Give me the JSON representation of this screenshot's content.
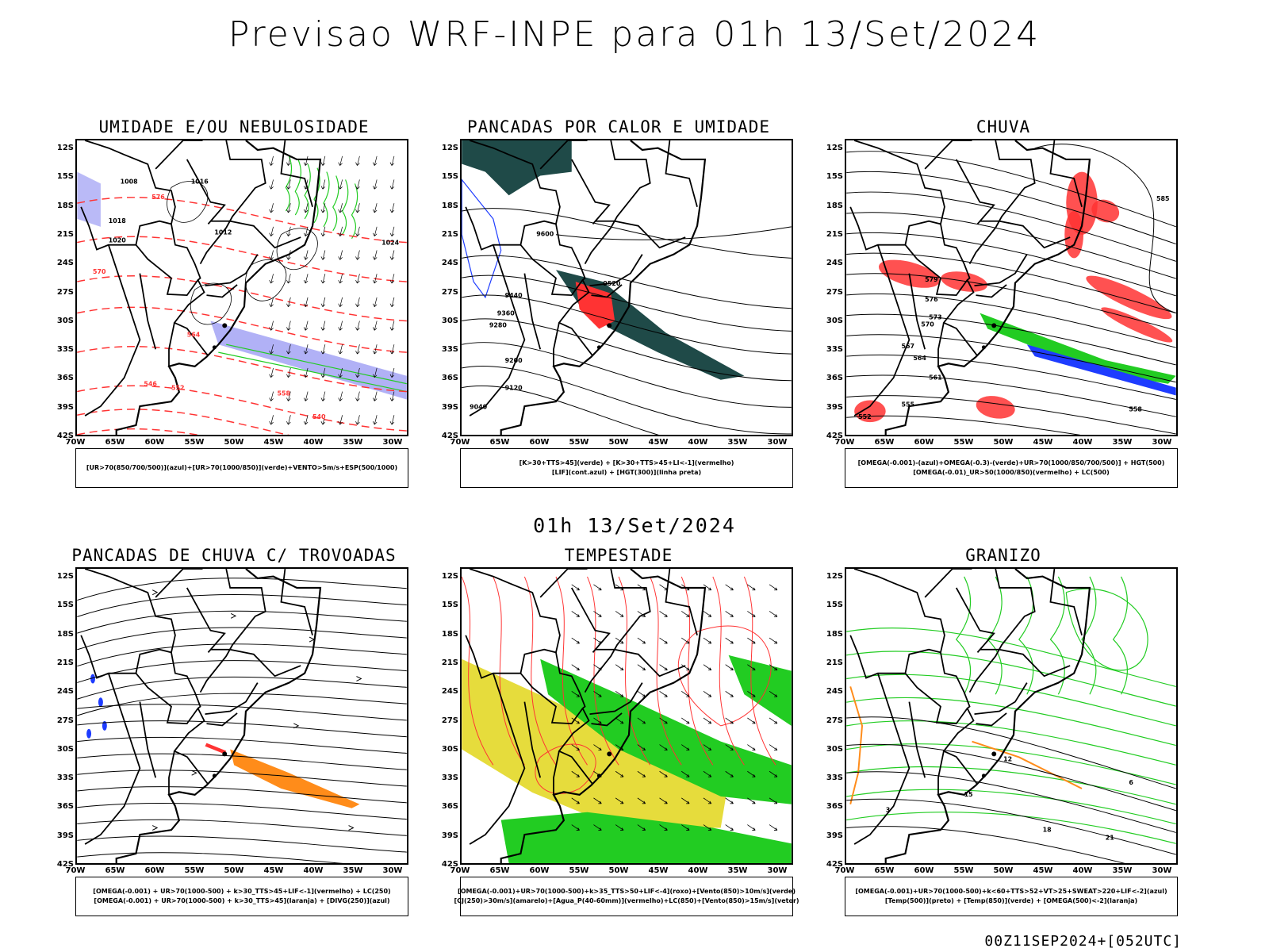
{
  "title": "Previsao WRF-INPE  para 01h 13/Set/2024",
  "subtitle": "01h 13/Set/2024",
  "footer": "00Z11SEP2024+[052UTC]",
  "lat_labels": [
    "12S",
    "15S",
    "18S",
    "21S",
    "24S",
    "27S",
    "30S",
    "33S",
    "36S",
    "39S",
    "42S"
  ],
  "lon_labels": [
    "70W",
    "65W",
    "60W",
    "55W",
    "50W",
    "45W",
    "40W",
    "35W",
    "30W"
  ],
  "panels": [
    {
      "title": "UMIDADE E/OU NEBULOSIDADE",
      "legend": [
        "[UR>70(850/700/500)](azul)+[UR>70(1000/850)](verde)+VENTO>5m/s+ESP(500/1000)"
      ],
      "contour_labels": [
        "1016",
        "1012",
        "1008",
        "1020",
        "1024",
        "1018",
        "576",
        "570",
        "564",
        "558",
        "552",
        "546",
        "540"
      ]
    },
    {
      "title": "PANCADAS POR CALOR E UMIDADE",
      "legend": [
        "[K>30+TTS>45](verde) + [K>30+TTS>45+LI<-1](vermelho)",
        "[LIF](cont.azul) + [HGT(300)](linha preta)"
      ],
      "contour_labels": [
        "9600",
        "9520",
        "9440",
        "9360",
        "9280",
        "9200",
        "9120",
        "9040"
      ]
    },
    {
      "title": "CHUVA",
      "legend": [
        "[OMEGA(-0.001)-(azul)+OMEGA(-0.3)-(verde)+UR>70(1000/850/700/500)] + HGT(500)",
        "[OMEGA(-0.01)_UR>50(1000/850)(vermelho) + LC(500)"
      ],
      "contour_labels": [
        "585",
        "579",
        "576",
        "573",
        "570",
        "567",
        "564",
        "561",
        "558",
        "555",
        "552"
      ]
    },
    {
      "title": "PANCADAS DE CHUVA C/ TROVOADAS",
      "legend": [
        "[OMEGA(-0.001) + UR>70(1000-500) + k>30_TTS>45+LIF<-1](vermelho) + LC(250)",
        "[OMEGA(-0.001) + UR>70(1000-500) + k>30_TTS>45](laranja) + [DIVG(250)](azul)"
      ],
      "contour_labels": []
    },
    {
      "title": "TEMPESTADE",
      "legend": [
        "[OMEGA(-0.001)+UR>70(1000-500)+k>35_TTS>50+LIF<-4](roxo)+[Vento(850)>10m/s](verde)",
        "[CJ(250)>30m/s](amarelo)+[Agua_P(40-60mm)](vermelho)+LC(850)+[Vento(850)>15m/s](vetor)"
      ],
      "contour_labels": []
    },
    {
      "title": "GRANIZO",
      "legend": [
        "[OMEGA(-0.001)+UR>70(1000-500)+k<60+TTS>52+VT>25+SWEAT>220+LIF<-2](azul)",
        "[Temp(500)](preto) + [Temp(850)](verde) + [OMEGA(500)<-2](laranja)"
      ],
      "contour_labels": [
        "12",
        "15",
        "18",
        "21",
        "6",
        "3"
      ]
    }
  ],
  "colors": {
    "blue": "#1e3cff",
    "green": "#22cc22",
    "red": "#ff3333",
    "orange": "#ff8c1a",
    "yellow": "#e6dc3c",
    "teal": "#1f4a48",
    "lavender": "#a9a9f5"
  }
}
